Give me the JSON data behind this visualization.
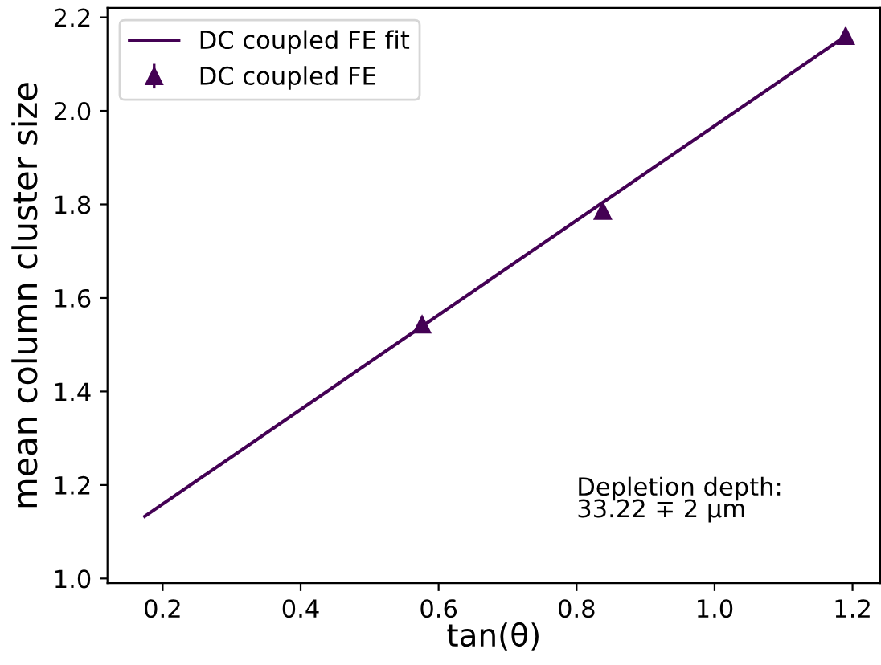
{
  "chart_data": {
    "type": "scatter",
    "xlabel": "tan(θ)",
    "ylabel": "mean column cluster size",
    "xlim": [
      0.12,
      1.24
    ],
    "ylim": [
      0.99,
      2.22
    ],
    "xticks": [
      0.2,
      0.4,
      0.6,
      0.8,
      {
        "value": 1,
        "label": "1.0"
      },
      1.2
    ],
    "yticks": [
      {
        "value": 1,
        "label": "1.0"
      },
      1.2,
      1.4,
      1.6,
      1.8,
      {
        "value": 2,
        "label": "2.0"
      },
      2.2
    ],
    "series": [
      {
        "name": "DC coupled FE fit",
        "type": "line",
        "color": "#440154",
        "x": [
          0.174,
          1.19
        ],
        "values": [
          1.133,
          2.16
        ],
        "marker": "none",
        "line_style": "solid"
      },
      {
        "name": "DC coupled FE",
        "color": "#440154",
        "x": [
          0.576,
          0.838,
          1.19
        ],
        "values": [
          1.543,
          1.786,
          2.16
        ],
        "errors": [
          0.01,
          0.01,
          0.01
        ],
        "marker": "triangle"
      }
    ],
    "annotations": [
      "Depletion depth:\n33.22 ∓ 2 μm"
    ],
    "legend": "top left",
    "grid": false
  }
}
